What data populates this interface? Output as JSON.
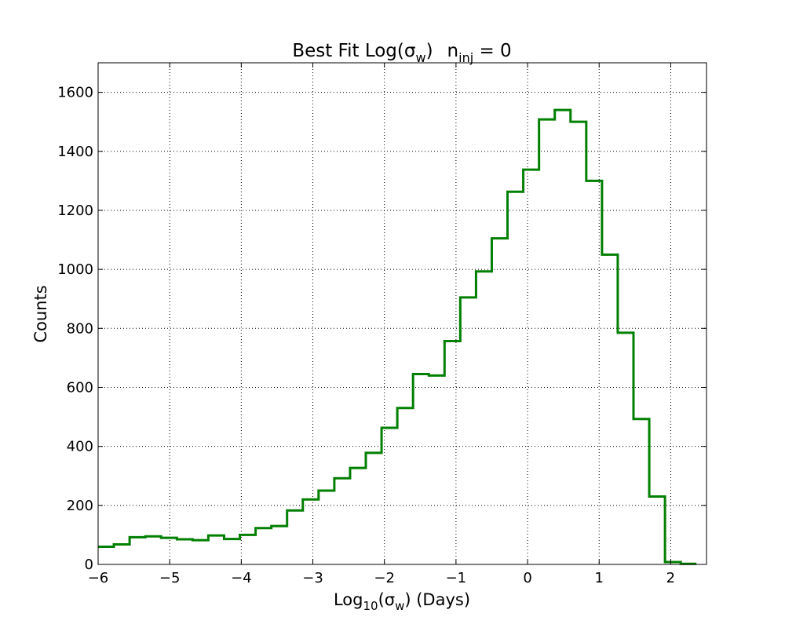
{
  "chart_data": {
    "type": "histogram",
    "title": {
      "main": "Best Fit Log(σ",
      "main_sub": "w",
      "main_close": ")",
      "n": "n",
      "n_sub": "inj",
      "n_rest": " = 0"
    },
    "xlabel": {
      "pre": "Log",
      "sub1": "10",
      "mid": "(σ",
      "sub2": "w",
      "post": ") (Days)"
    },
    "ylabel": "Counts",
    "xlim": [
      -6,
      2.5
    ],
    "ylim": [
      0,
      1700
    ],
    "xticks": [
      -6,
      -5,
      -4,
      -3,
      -2,
      -1,
      0,
      1,
      2
    ],
    "xtick_labels": [
      "−6",
      "−5",
      "−4",
      "−3",
      "−2",
      "−1",
      "0",
      "1",
      "2"
    ],
    "yticks": [
      0,
      200,
      400,
      600,
      800,
      1000,
      1200,
      1400,
      1600
    ],
    "ytick_labels": [
      "0",
      "200",
      "400",
      "600",
      "800",
      "1000",
      "1200",
      "1400",
      "1600"
    ],
    "grid": true,
    "line_color": "#007f00",
    "bin_edges": [
      -6.0,
      -5.78,
      -5.56,
      -5.34,
      -5.12,
      -4.9,
      -4.68,
      -4.46,
      -4.24,
      -4.02,
      -3.8,
      -3.58,
      -3.36,
      -3.14,
      -2.92,
      -2.7,
      -2.48,
      -2.26,
      -2.04,
      -1.82,
      -1.6,
      -1.38,
      -1.16,
      -0.94,
      -0.72,
      -0.5,
      -0.28,
      -0.06,
      0.16,
      0.38,
      0.6,
      0.82,
      1.04,
      1.26,
      1.48,
      1.7,
      1.92,
      2.14,
      2.36
    ],
    "counts": [
      60,
      68,
      92,
      95,
      90,
      85,
      82,
      98,
      86,
      100,
      123,
      130,
      183,
      220,
      250,
      292,
      327,
      378,
      463,
      530,
      645,
      640,
      757,
      905,
      993,
      1105,
      1263,
      1338,
      1508,
      1540,
      1500,
      1300,
      1050,
      785,
      493,
      230,
      8,
      2
    ]
  }
}
